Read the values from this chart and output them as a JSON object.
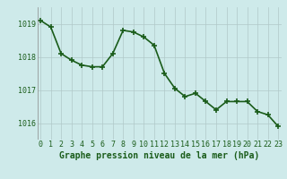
{
  "x": [
    0,
    1,
    2,
    3,
    4,
    5,
    6,
    7,
    8,
    9,
    10,
    11,
    12,
    13,
    14,
    15,
    16,
    17,
    18,
    19,
    20,
    21,
    22,
    23
  ],
  "y": [
    1019.1,
    1018.9,
    1018.1,
    1017.9,
    1017.75,
    1017.7,
    1017.7,
    1018.1,
    1018.8,
    1018.75,
    1018.6,
    1018.35,
    1017.5,
    1017.05,
    1016.8,
    1016.9,
    1016.65,
    1016.4,
    1016.65,
    1016.65,
    1016.65,
    1016.35,
    1016.25,
    1015.9
  ],
  "line_color": "#1a5c1a",
  "marker": "+",
  "marker_size": 4,
  "marker_lw": 1.2,
  "line_width": 1.2,
  "bg_color": "#ceeaea",
  "grid_color": "#b0c8c8",
  "xlabel": "Graphe pression niveau de la mer (hPa)",
  "xlabel_color": "#1a5c1a",
  "xlabel_fontsize": 7,
  "tick_color": "#1a5c1a",
  "tick_fontsize": 6,
  "ylim": [
    1015.5,
    1019.5
  ],
  "yticks": [
    1016,
    1017,
    1018,
    1019
  ],
  "xlim": [
    -0.3,
    23.3
  ],
  "xticks": [
    0,
    1,
    2,
    3,
    4,
    5,
    6,
    7,
    8,
    9,
    10,
    11,
    12,
    13,
    14,
    15,
    16,
    17,
    18,
    19,
    20,
    21,
    22,
    23
  ]
}
